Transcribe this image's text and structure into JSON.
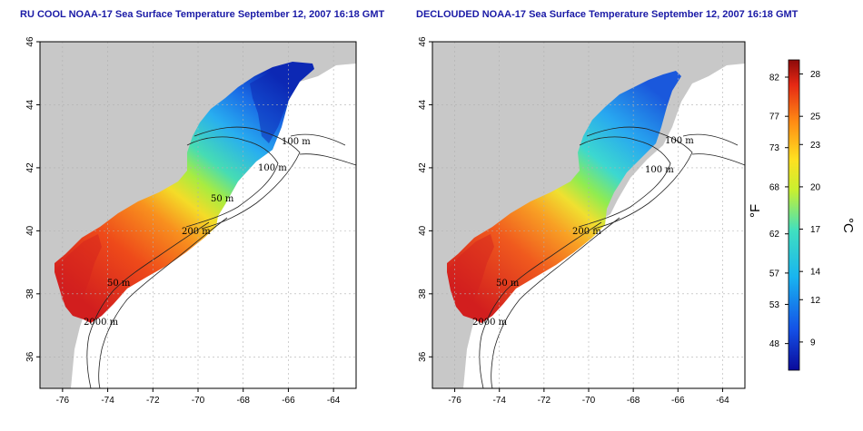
{
  "titles": {
    "left": "RU COOL NOAA-17 Sea Surface Temperature September 12, 2007 16:18 GMT",
    "right": "DECLOUDED NOAA-17 Sea Surface Temperature September 12, 2007 16:18 GMT"
  },
  "axes": {
    "x_ticks": [
      "-76",
      "-74",
      "-72",
      "-70",
      "-68",
      "-66",
      "-64"
    ],
    "y_ticks": [
      "36",
      "38",
      "40",
      "42",
      "44",
      "46"
    ],
    "x_range": [
      -77.0,
      -63.0
    ],
    "y_range": [
      35.0,
      46.0
    ]
  },
  "contour_labels": [
    "100 m",
    "100 m",
    "50 m",
    "200 m",
    "50 m",
    "2000 m"
  ],
  "colorbar": {
    "fahrenheit_ticks": [
      "82",
      "77",
      "73",
      "68",
      "62",
      "57",
      "53",
      "48"
    ],
    "celsius_ticks": [
      "28",
      "25",
      "23",
      "20",
      "17",
      "14",
      "12",
      "9"
    ],
    "unit_f": "°F",
    "unit_c": "°C",
    "range_c": [
      7,
      29
    ]
  },
  "colors": {
    "land": "#c8c8c8",
    "title": "#1a1aa6",
    "warm": "#e0281e",
    "cool": "#1e5adc"
  }
}
